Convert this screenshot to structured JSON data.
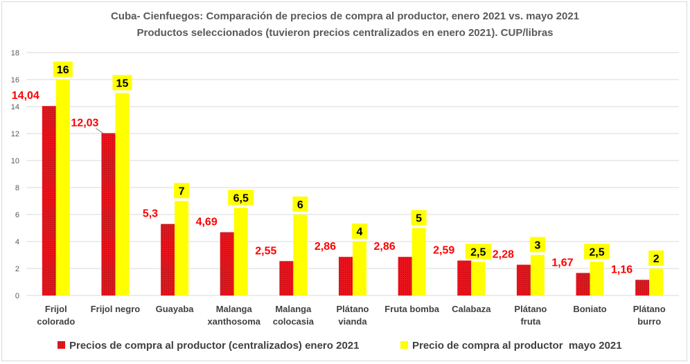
{
  "chart_data": {
    "type": "bar",
    "title": "Cuba- Cienfuegos: Comparación de precios de compra al productor, enero 2021 vs. mayo 2021",
    "subtitle": "Productos seleccionados (tuvieron precios centralizados en enero 2021). CUP/libras",
    "categories": [
      [
        "Frijol",
        "colorado"
      ],
      [
        "Frijol negro"
      ],
      [
        "Guayaba"
      ],
      [
        "Malanga",
        "xanthosoma"
      ],
      [
        "Malanga",
        "colocasia"
      ],
      [
        "Plátano",
        "vianda"
      ],
      [
        "Fruta bomba"
      ],
      [
        "Calabaza"
      ],
      [
        "Plátano",
        "fruta"
      ],
      [
        "Boniato"
      ],
      [
        "Plátano",
        "burro"
      ]
    ],
    "series": [
      {
        "name": "Precios de compra al productor (centralizados) enero 2021",
        "color": "#e8141c",
        "values": [
          14.04,
          12.03,
          5.3,
          4.69,
          2.55,
          2.86,
          2.86,
          2.59,
          2.28,
          1.67,
          1.16
        ],
        "labels": [
          "14,04",
          "12,03",
          "5,3",
          "4,69",
          "2,55",
          "2,86",
          "2,86",
          "2,59",
          "2,28",
          "1,67",
          "1,16"
        ]
      },
      {
        "name": "Precio de compra al productor  mayo 2021",
        "color": "#ffff00",
        "values": [
          16,
          15,
          7,
          6.5,
          6,
          4,
          5,
          2.5,
          3,
          2.5,
          2
        ],
        "labels": [
          "16",
          "15",
          "7",
          "6,5",
          "6",
          "4",
          "5",
          "2,5",
          "3",
          "2,5",
          "2"
        ]
      }
    ],
    "ylim": [
      0,
      18
    ],
    "yticks": [
      "0",
      "2",
      "4",
      "6",
      "8",
      "10",
      "12",
      "14",
      "16",
      "18"
    ],
    "grid": true,
    "legend_position": "bottom"
  }
}
